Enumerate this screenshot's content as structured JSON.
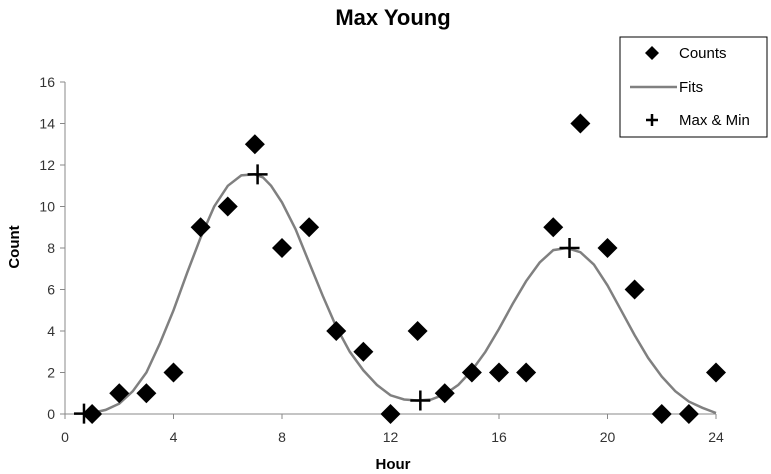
{
  "chart_data": {
    "type": "scatter",
    "title": "Max Young",
    "xlabel": "Hour",
    "ylabel": "Count",
    "xlim": [
      0,
      24
    ],
    "ylim": [
      0,
      16
    ],
    "x_ticks": [
      0,
      4,
      8,
      12,
      16,
      20,
      24
    ],
    "y_ticks": [
      0,
      2,
      4,
      6,
      8,
      10,
      12,
      14,
      16
    ],
    "grid": false,
    "legend_position": "top-right",
    "series": [
      {
        "name": "Counts",
        "kind": "scatter",
        "marker": "diamond",
        "color": "#000000",
        "x": [
          1,
          2,
          3,
          4,
          5,
          6,
          7,
          8,
          9,
          10,
          11,
          12,
          13,
          14,
          15,
          16,
          17,
          18,
          19,
          20,
          21,
          22,
          23,
          24
        ],
        "y": [
          0,
          1,
          1,
          2,
          9,
          10,
          13,
          8,
          9,
          4,
          3,
          0,
          4,
          1,
          2,
          2,
          2,
          9,
          14,
          8,
          6,
          0,
          0,
          2
        ]
      },
      {
        "name": "Fits",
        "kind": "line",
        "color": "#808080",
        "x": [
          0.7,
          1,
          1.5,
          2,
          2.5,
          3,
          3.5,
          4,
          4.5,
          5,
          5.5,
          6,
          6.5,
          7,
          7.3,
          7.6,
          8,
          8.5,
          9,
          9.5,
          10,
          10.5,
          11,
          11.5,
          12,
          12.5,
          13,
          13.5,
          14,
          14.5,
          15,
          15.5,
          16,
          16.5,
          17,
          17.5,
          18,
          18.5,
          19,
          19.5,
          20,
          20.5,
          21,
          21.5,
          22,
          22.5,
          23,
          23.5,
          24
        ],
        "y": [
          0.02,
          0.05,
          0.2,
          0.5,
          1.1,
          2.0,
          3.4,
          5.0,
          6.8,
          8.5,
          10.0,
          11.0,
          11.5,
          11.55,
          11.4,
          11.0,
          10.2,
          8.9,
          7.3,
          5.7,
          4.2,
          3.0,
          2.1,
          1.4,
          0.9,
          0.7,
          0.65,
          0.7,
          0.95,
          1.4,
          2.1,
          3.0,
          4.1,
          5.3,
          6.4,
          7.3,
          7.9,
          8.0,
          7.8,
          7.2,
          6.2,
          5.0,
          3.8,
          2.7,
          1.8,
          1.1,
          0.6,
          0.3,
          0.05
        ]
      },
      {
        "name": "Max & Min",
        "kind": "scatter",
        "marker": "plus",
        "color": "#000000",
        "x": [
          0.7,
          7.1,
          13.1,
          18.6
        ],
        "y": [
          0.02,
          11.55,
          0.65,
          8.0
        ]
      }
    ]
  }
}
